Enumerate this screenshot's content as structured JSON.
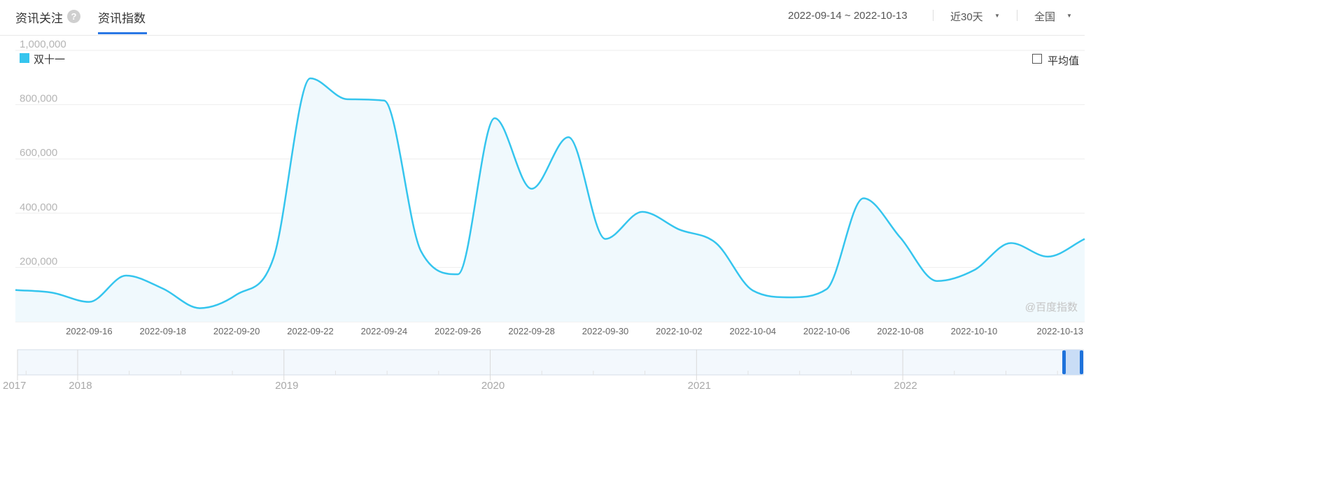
{
  "tabs": [
    {
      "label": "资讯关注",
      "active": false
    },
    {
      "label": "资讯指数",
      "active": true
    }
  ],
  "help_icon_glyph": "?",
  "toolbar": {
    "date_range": "2022-09-14 ~ 2022-10-13",
    "period": "近30天",
    "region": "全国",
    "caret_glyph": "▼"
  },
  "average_toggle": {
    "label": "平均值",
    "checked": false
  },
  "watermark": "@百度指数",
  "colors": {
    "series": "#35c5ee",
    "area_fill": "#f0f9fd",
    "grid": "#eeeeee",
    "tab_active": "#2b78e4",
    "navigator_fill": "#f3f8fd",
    "navigator_handle": "#1e72db"
  },
  "chart_data": {
    "type": "area",
    "title": "",
    "xlabel": "",
    "ylabel": "",
    "x": [
      "2022-09-14",
      "2022-09-15",
      "2022-09-16",
      "2022-09-17",
      "2022-09-18",
      "2022-09-19",
      "2022-09-20",
      "2022-09-21",
      "2022-09-22",
      "2022-09-23",
      "2022-09-24",
      "2022-09-25",
      "2022-09-26",
      "2022-09-27",
      "2022-09-28",
      "2022-09-29",
      "2022-09-30",
      "2022-10-01",
      "2022-10-02",
      "2022-10-03",
      "2022-10-04",
      "2022-10-05",
      "2022-10-06",
      "2022-10-07",
      "2022-10-08",
      "2022-10-09",
      "2022-10-10",
      "2022-10-11",
      "2022-10-12",
      "2022-10-13"
    ],
    "series": [
      {
        "name": "双十一",
        "values": [
          117000,
          107000,
          73000,
          170000,
          122000,
          50000,
          100000,
          235000,
          897000,
          820000,
          815000,
          260000,
          175000,
          750000,
          490000,
          680000,
          305000,
          405000,
          340000,
          290000,
          115000,
          90000,
          120000,
          455000,
          310000,
          150000,
          190000,
          290000,
          240000,
          305000
        ]
      }
    ],
    "ylim": [
      0,
      1000000
    ],
    "yticks": [
      200000,
      400000,
      600000,
      800000,
      1000000
    ],
    "ytick_labels": [
      "200,000",
      "400,000",
      "600,000",
      "800,000",
      "1,000,000"
    ],
    "xtick_labels": [
      "2022-09-16",
      "2022-09-18",
      "2022-09-20",
      "2022-09-22",
      "2022-09-24",
      "2022-09-26",
      "2022-09-28",
      "2022-09-30",
      "2022-10-02",
      "2022-10-04",
      "2022-10-06",
      "2022-10-08",
      "2022-10-10",
      "2022-10-13"
    ],
    "grid": true,
    "legend": "top-left",
    "navigator": {
      "years": [
        "2017",
        "2018",
        "2019",
        "2020",
        "2021",
        "2022"
      ],
      "selection": [
        "2022-09-14",
        "2022-10-13"
      ]
    }
  }
}
